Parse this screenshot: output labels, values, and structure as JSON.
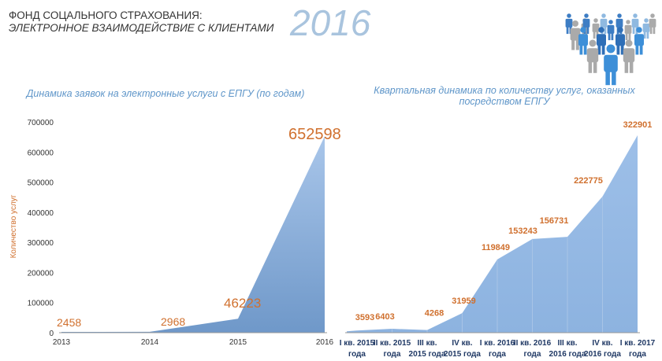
{
  "header": {
    "line1": "ФОНД СОЦАЛЬНОГО СТРАХОВАНИЯ:",
    "line2": "ЭЛЕКТРОННОЕ ВЗАИМОДЕЙСТВИЕ С КЛИЕНТАМИ",
    "year": "2016"
  },
  "colors": {
    "area": "#8fb4e0",
    "label": "#d0702e",
    "title": "#5f96c9"
  },
  "chart_data": [
    {
      "type": "area",
      "title": "Динамика заявок на электронные услуги с ЕПГУ (по годам)",
      "ylabel": "Количество услуг",
      "xlabel": "",
      "categories": [
        "2013",
        "2014",
        "2015",
        "2016"
      ],
      "values": [
        2458,
        2968,
        46223,
        652598
      ],
      "ylim": [
        0,
        700000
      ],
      "yticks": [
        "0",
        "100000",
        "200000",
        "300000",
        "400000",
        "500000",
        "600000",
        "700000"
      ],
      "grid": false
    },
    {
      "type": "area",
      "title": "Квартальная динамика по количеству услуг, оказанных посредством ЕПГУ",
      "categories": [
        [
          "I кв. 2015",
          "года"
        ],
        [
          "II кв. 2015",
          "года"
        ],
        [
          "III кв.",
          "2015 года"
        ],
        [
          "IV кв.",
          "2015 года"
        ],
        [
          "I кв. 2016",
          "года"
        ],
        [
          "II кв. 2016",
          "года"
        ],
        [
          "III кв.",
          "2016 года"
        ],
        [
          "IV кв.",
          "2016 года"
        ],
        [
          "I кв. 2017",
          "года"
        ]
      ],
      "values": [
        3593,
        6403,
        4268,
        31959,
        119849,
        153243,
        156731,
        222775,
        322901
      ],
      "grid": false
    }
  ]
}
